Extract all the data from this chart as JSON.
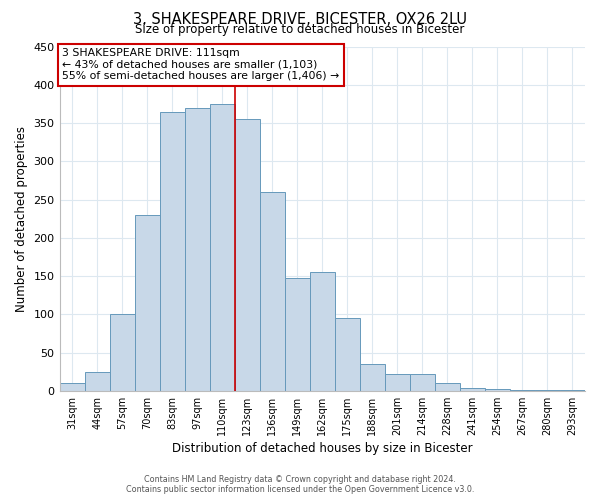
{
  "title": "3, SHAKESPEARE DRIVE, BICESTER, OX26 2LU",
  "subtitle": "Size of property relative to detached houses in Bicester",
  "xlabel": "Distribution of detached houses by size in Bicester",
  "ylabel": "Number of detached properties",
  "bar_labels": [
    "31sqm",
    "44sqm",
    "57sqm",
    "70sqm",
    "83sqm",
    "97sqm",
    "110sqm",
    "123sqm",
    "136sqm",
    "149sqm",
    "162sqm",
    "175sqm",
    "188sqm",
    "201sqm",
    "214sqm",
    "228sqm",
    "241sqm",
    "254sqm",
    "267sqm",
    "280sqm",
    "293sqm"
  ],
  "bar_values": [
    10,
    25,
    100,
    230,
    365,
    370,
    375,
    355,
    260,
    148,
    155,
    95,
    35,
    22,
    22,
    10,
    4,
    2,
    1,
    1,
    1
  ],
  "bar_color": "#c8d8e8",
  "bar_edge_color": "#6699bb",
  "ylim": [
    0,
    450
  ],
  "yticks": [
    0,
    50,
    100,
    150,
    200,
    250,
    300,
    350,
    400,
    450
  ],
  "property_line_x": 6.5,
  "property_line_color": "#cc0000",
  "annotation_title": "3 SHAKESPEARE DRIVE: 111sqm",
  "annotation_line1": "← 43% of detached houses are smaller (1,103)",
  "annotation_line2": "55% of semi-detached houses are larger (1,406) →",
  "annotation_box_color": "#ffffff",
  "annotation_box_edge": "#cc0000",
  "footer1": "Contains HM Land Registry data © Crown copyright and database right 2024.",
  "footer2": "Contains public sector information licensed under the Open Government Licence v3.0.",
  "background_color": "#ffffff",
  "grid_color": "#dde8f0"
}
